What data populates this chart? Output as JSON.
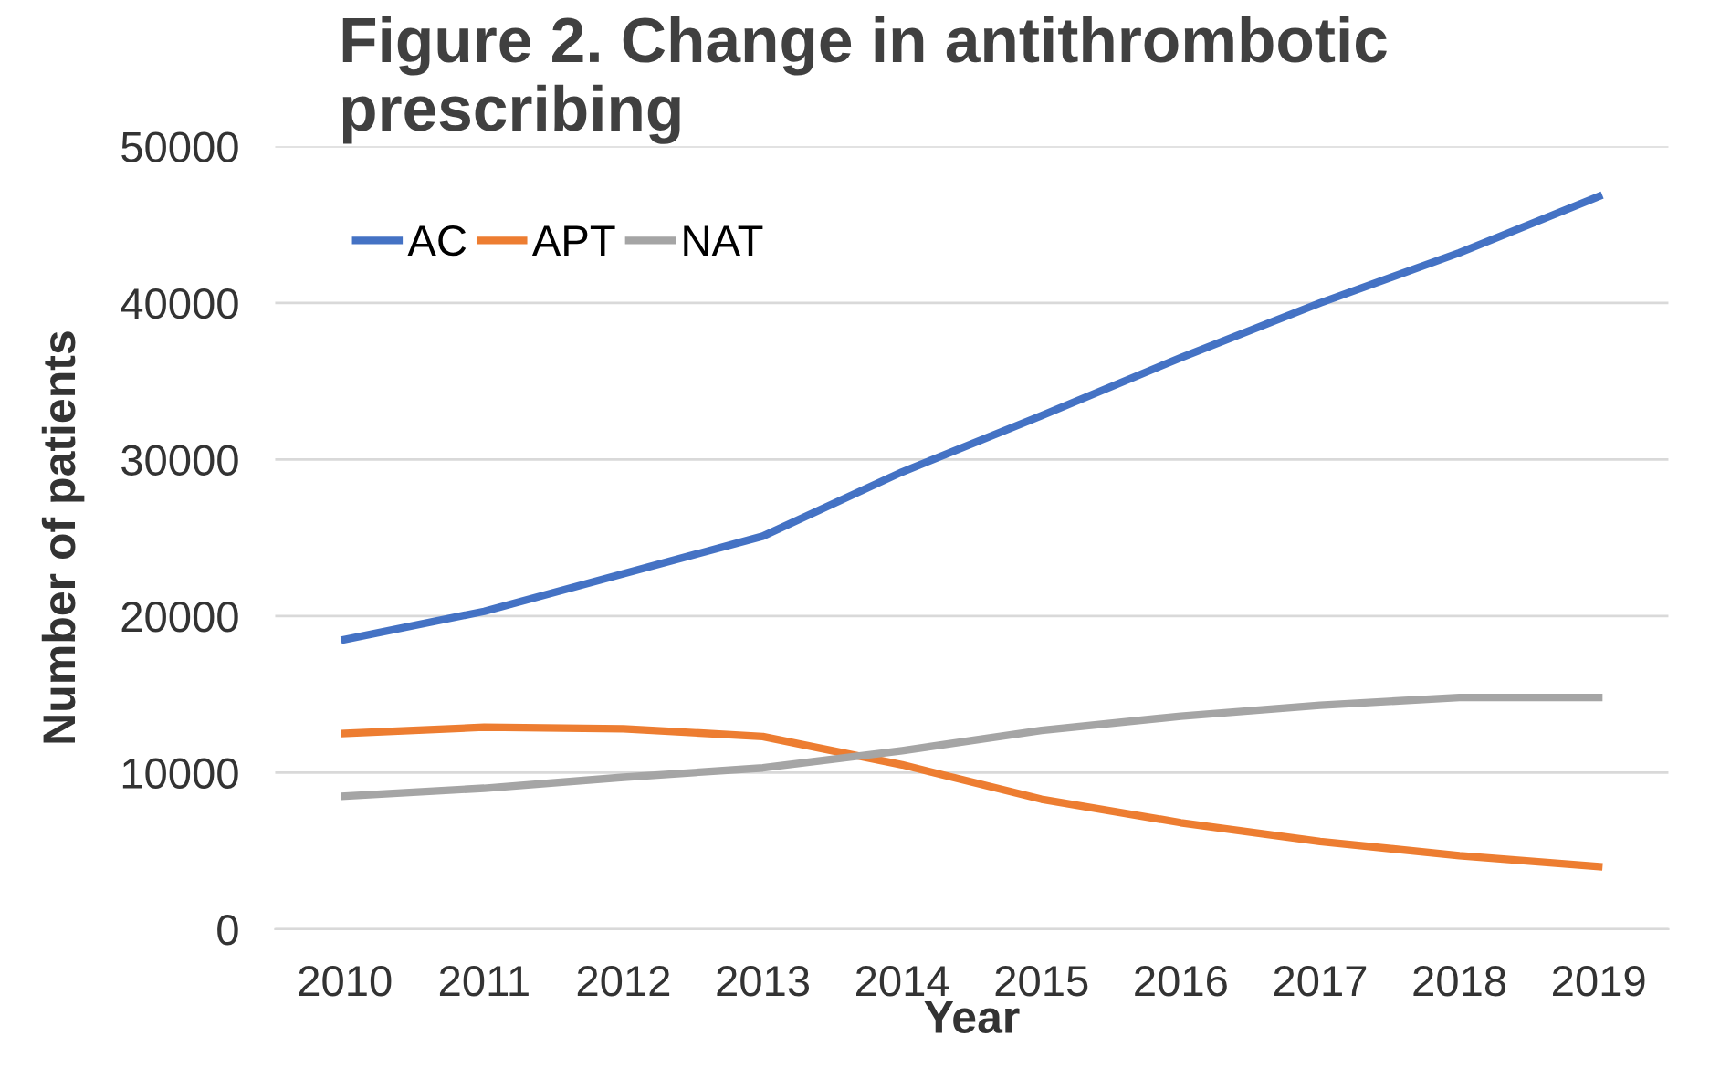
{
  "chart_data": {
    "type": "line",
    "title": "Figure 2. Change in antithrombotic prescribing",
    "xlabel": "Year",
    "ylabel": "Number of patients",
    "categories": [
      "2010",
      "2011",
      "2012",
      "2013",
      "2014",
      "2015",
      "2016",
      "2017",
      "2018",
      "2019"
    ],
    "series": [
      {
        "name": "AC",
        "color": "#4472c4",
        "values": [
          18500,
          20300,
          22700,
          25100,
          29200,
          32800,
          36500,
          40000,
          43200,
          46800
        ]
      },
      {
        "name": "APT",
        "color": "#ed7d31",
        "values": [
          12500,
          12900,
          12800,
          12300,
          10500,
          8300,
          6800,
          5600,
          4700,
          4000
        ]
      },
      {
        "name": "NAT",
        "color": "#a5a5a5",
        "values": [
          8500,
          9000,
          9700,
          10300,
          11400,
          12700,
          13600,
          14300,
          14800,
          14800
        ]
      }
    ],
    "ylim": [
      0,
      50000
    ],
    "yticks": [
      0,
      10000,
      20000,
      30000,
      40000,
      50000
    ],
    "grid": "y",
    "legend": "top left",
    "marker": "none",
    "line_style": "solid"
  }
}
